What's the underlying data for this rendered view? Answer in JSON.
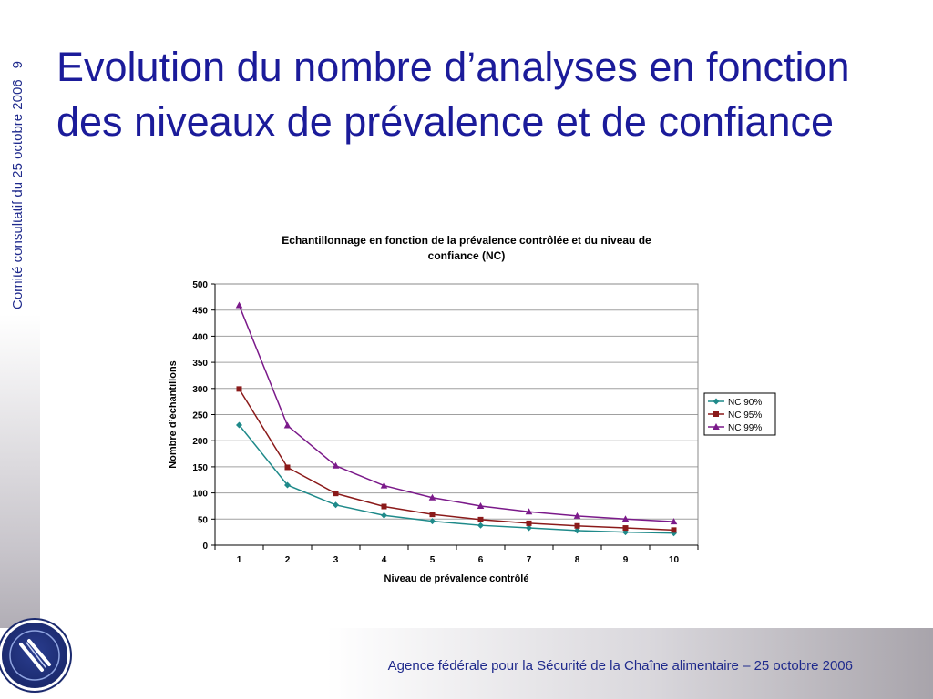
{
  "slide": {
    "side_label": "Comité consultatif du 25 octobre 2006",
    "page_number": "9",
    "title": "Evolution du nombre d’analyses en fonction des niveaux de prévalence et de confiance",
    "footer": "Agence fédérale pour la Sécurité de la Chaîne alimentaire – 25 octobre 2006",
    "logo_icon": "afsca-logo-icon"
  },
  "chart_data": {
    "type": "line",
    "title_lines": [
      "Echantillonnage en fonction de la prévalence contrôlée et du niveau de",
      "confiance (NC)"
    ],
    "xlabel": "Niveau de prévalence contrôlé",
    "ylabel": "Nombre d’échantillons",
    "categories": [
      "1",
      "2",
      "3",
      "4",
      "5",
      "6",
      "7",
      "8",
      "9",
      "10"
    ],
    "ylim": [
      0,
      500
    ],
    "yticks": [
      0,
      50,
      100,
      150,
      200,
      250,
      300,
      350,
      400,
      450,
      500
    ],
    "grid": "horizontal",
    "legend_position": "right",
    "series": [
      {
        "name": "NC 90%",
        "color": "#1f8a8a",
        "marker": "diamond",
        "values": [
          230,
          115,
          77,
          57,
          46,
          38,
          33,
          28,
          25,
          23
        ]
      },
      {
        "name": "NC 95%",
        "color": "#8b1a1a",
        "marker": "square",
        "values": [
          299,
          149,
          99,
          74,
          59,
          49,
          42,
          37,
          33,
          29
        ]
      },
      {
        "name": "NC 99%",
        "color": "#7b1a8a",
        "marker": "triangle",
        "values": [
          459,
          229,
          152,
          114,
          91,
          75,
          64,
          56,
          50,
          45
        ]
      }
    ]
  }
}
